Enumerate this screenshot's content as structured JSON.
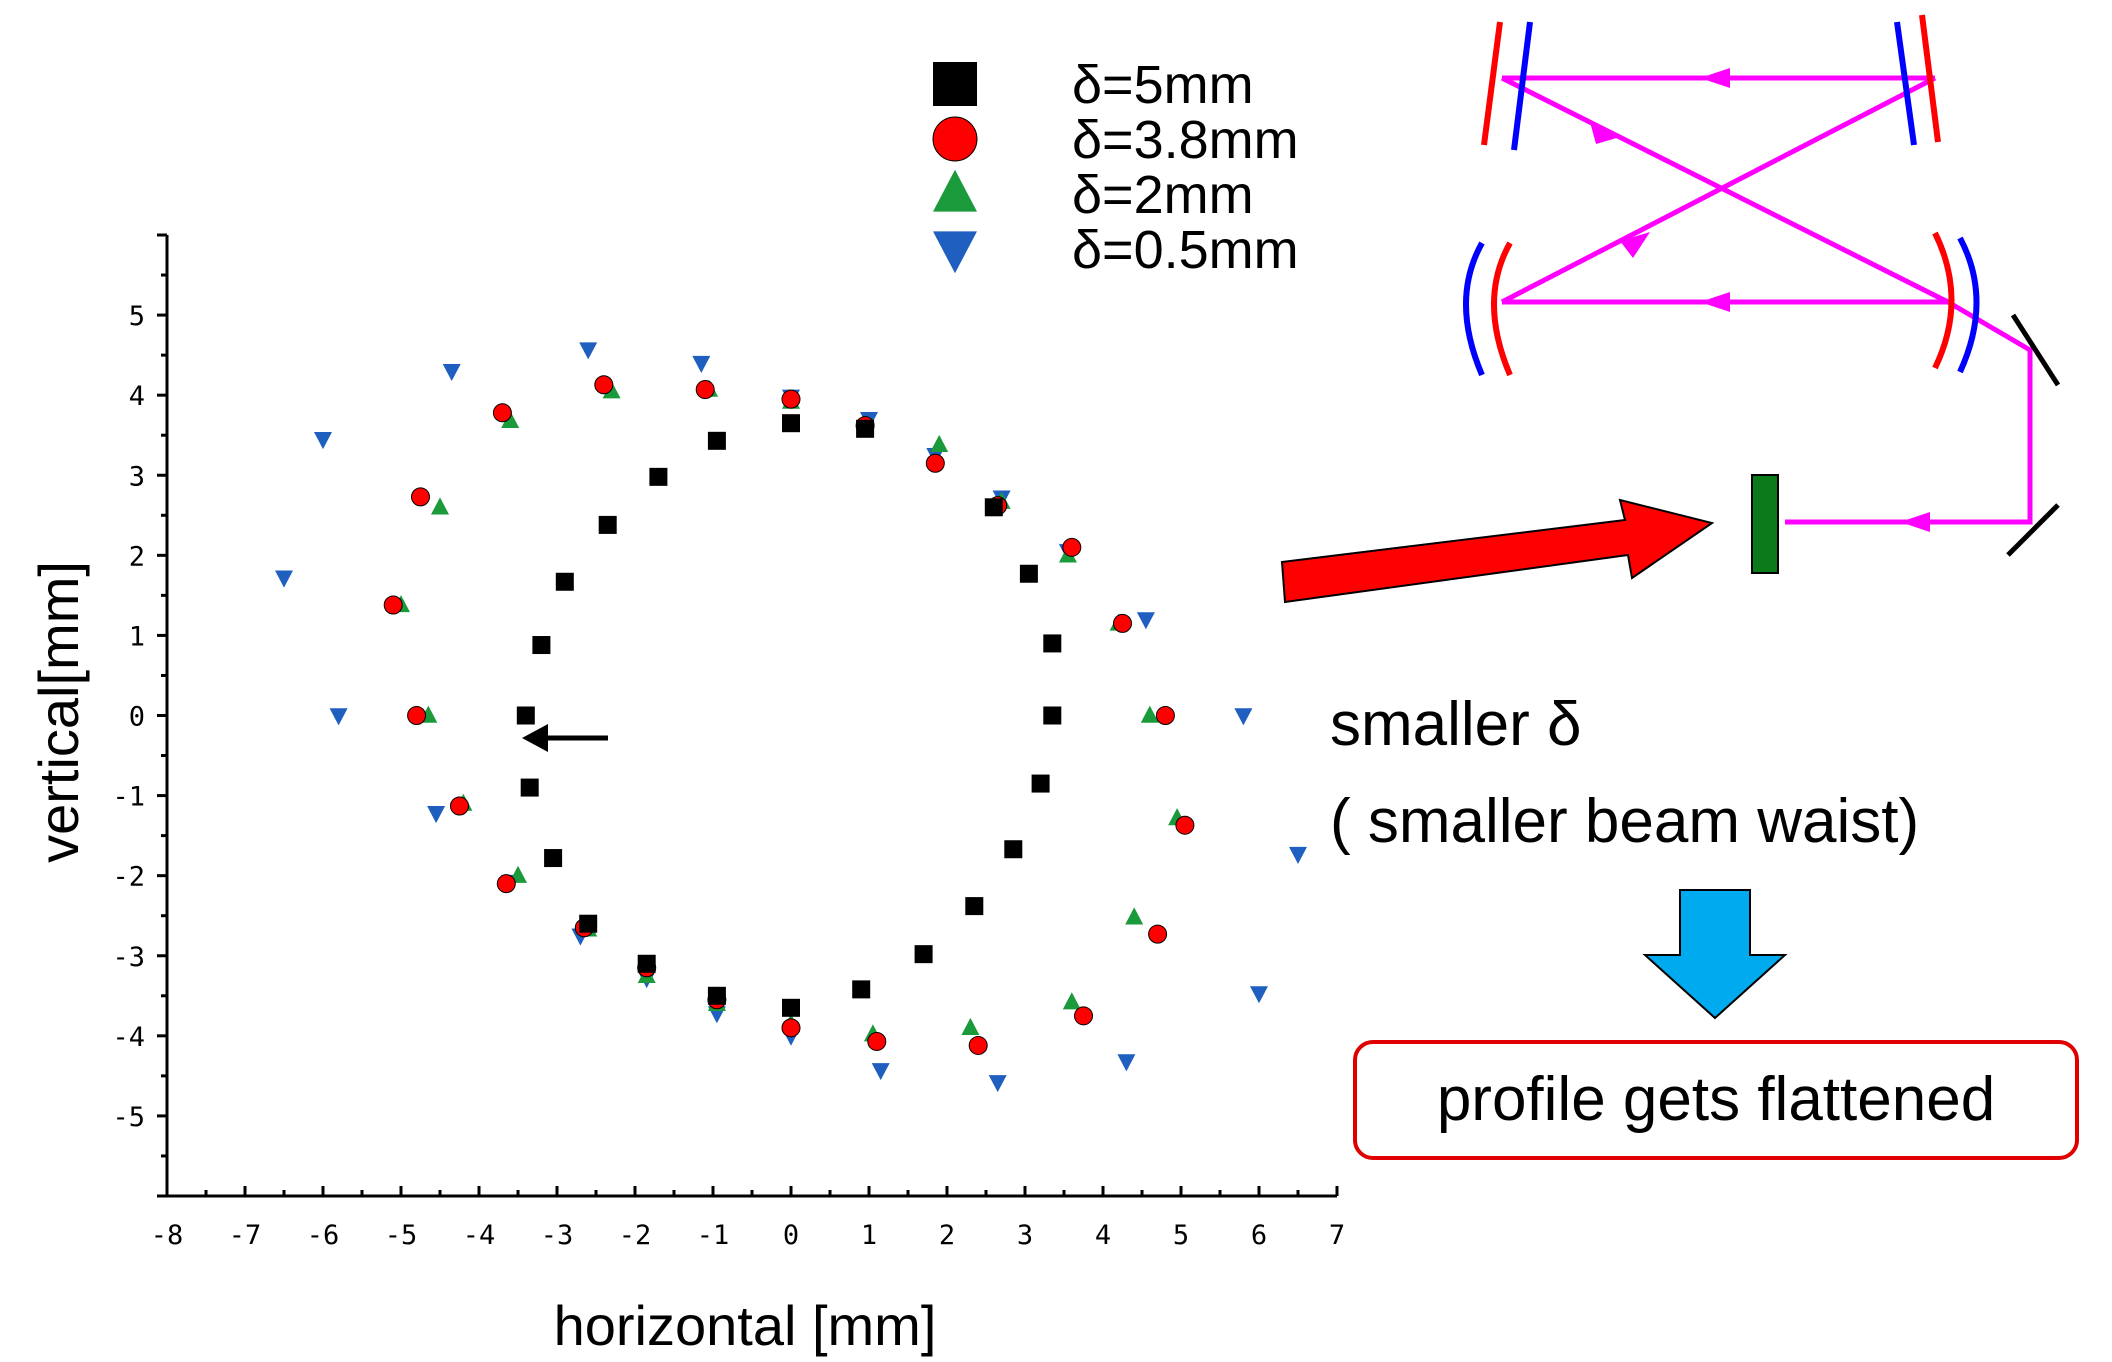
{
  "chart_data": {
    "type": "scatter",
    "xlabel": "horizontal [mm]",
    "ylabel": "vertical[mm]",
    "xlim": [
      -8,
      7
    ],
    "ylim": [
      -6,
      6
    ],
    "x_ticks": [
      -8,
      -7,
      -6,
      -5,
      -4,
      -3,
      -2,
      -1,
      0,
      1,
      2,
      3,
      4,
      5,
      6,
      7
    ],
    "y_ticks": [
      5,
      4,
      3,
      2,
      1,
      0,
      -1,
      -2,
      -3,
      -4,
      -5
    ],
    "legend_position": "top-center",
    "grid": false,
    "series": [
      {
        "name": "δ=5mm",
        "marker": "square",
        "color": "#000000",
        "points": [
          [
            -3.4,
            0
          ],
          [
            -3.2,
            0.88
          ],
          [
            -2.9,
            1.67
          ],
          [
            -2.35,
            2.38
          ],
          [
            -1.7,
            2.98
          ],
          [
            -0.95,
            3.43
          ],
          [
            0,
            3.65
          ],
          [
            0.95,
            3.58
          ],
          [
            2.6,
            2.6
          ],
          [
            3.05,
            1.77
          ],
          [
            3.35,
            0.9
          ],
          [
            3.35,
            0
          ],
          [
            3.2,
            -0.85
          ],
          [
            2.85,
            -1.67
          ],
          [
            2.35,
            -2.38
          ],
          [
            1.7,
            -2.98
          ],
          [
            0.9,
            -3.42
          ],
          [
            0,
            -3.65
          ],
          [
            -0.95,
            -3.5
          ],
          [
            -1.85,
            -3.1
          ],
          [
            -2.6,
            -2.6
          ],
          [
            -3.05,
            -1.78
          ],
          [
            -3.35,
            -0.9
          ]
        ]
      },
      {
        "name": "δ=3.8mm",
        "marker": "circle",
        "color": "#ff0000",
        "points": [
          [
            -4.8,
            0
          ],
          [
            -5.1,
            1.38
          ],
          [
            -4.75,
            2.73
          ],
          [
            -3.7,
            3.78
          ],
          [
            -2.4,
            4.13
          ],
          [
            -1.1,
            4.07
          ],
          [
            0,
            3.95
          ],
          [
            0.95,
            3.62
          ],
          [
            1.85,
            3.15
          ],
          [
            2.65,
            2.62
          ],
          [
            3.6,
            2.1
          ],
          [
            4.25,
            1.15
          ],
          [
            4.8,
            0
          ],
          [
            5.05,
            -1.37
          ],
          [
            4.7,
            -2.73
          ],
          [
            3.75,
            -3.75
          ],
          [
            2.4,
            -4.12
          ],
          [
            1.1,
            -4.07
          ],
          [
            0,
            -3.9
          ],
          [
            -0.95,
            -3.55
          ],
          [
            -1.85,
            -3.15
          ],
          [
            -2.65,
            -2.65
          ],
          [
            -3.65,
            -2.1
          ],
          [
            -4.25,
            -1.13
          ]
        ]
      },
      {
        "name": "δ=2mm",
        "marker": "triangle-up",
        "color": "#1a9a3a",
        "points": [
          [
            -4.65,
            0
          ],
          [
            -5.0,
            1.38
          ],
          [
            -4.5,
            2.6
          ],
          [
            -3.6,
            3.68
          ],
          [
            -2.3,
            4.05
          ],
          [
            -1.05,
            4.07
          ],
          [
            0,
            3.92
          ],
          [
            0.95,
            3.62
          ],
          [
            1.9,
            3.38
          ],
          [
            2.7,
            2.67
          ],
          [
            3.55,
            2.0
          ],
          [
            4.2,
            1.15
          ],
          [
            4.6,
            0
          ],
          [
            4.95,
            -1.28
          ],
          [
            4.4,
            -2.52
          ],
          [
            3.6,
            -3.58
          ],
          [
            2.3,
            -3.9
          ],
          [
            1.05,
            -3.98
          ],
          [
            0,
            -3.85
          ],
          [
            -0.95,
            -3.6
          ],
          [
            -1.85,
            -3.25
          ],
          [
            -2.6,
            -2.67
          ],
          [
            -3.5,
            -2.0
          ],
          [
            -4.2,
            -1.1
          ]
        ]
      },
      {
        "name": "δ=0.5mm",
        "marker": "triangle-down",
        "color": "#1f5fbf",
        "points": [
          [
            -5.8,
            0
          ],
          [
            -6.5,
            1.72
          ],
          [
            -6.0,
            3.45
          ],
          [
            -4.35,
            4.3
          ],
          [
            -2.6,
            4.57
          ],
          [
            -1.15,
            4.4
          ],
          [
            0,
            3.98
          ],
          [
            1.0,
            3.7
          ],
          [
            1.85,
            3.25
          ],
          [
            2.7,
            2.72
          ],
          [
            3.55,
            2.05
          ],
          [
            4.55,
            1.2
          ],
          [
            5.8,
            0
          ],
          [
            6.5,
            -1.73
          ],
          [
            6.0,
            -3.47
          ],
          [
            4.3,
            -4.32
          ],
          [
            2.65,
            -4.58
          ],
          [
            1.15,
            -4.43
          ],
          [
            0,
            -4.0
          ],
          [
            -0.95,
            -3.72
          ],
          [
            -1.85,
            -3.28
          ],
          [
            -2.7,
            -2.75
          ],
          [
            -3.6,
            -2.08
          ],
          [
            -4.55,
            -1.22
          ]
        ]
      }
    ],
    "annotations": [
      "smaller δ",
      "( smaller beam waist)",
      "profile gets flattened"
    ]
  },
  "colors": {
    "arrow_red": "#ff0000",
    "arrow_blue": "#00aaee",
    "beam_path": "#ff00ff",
    "mirror_red": "#ff0000",
    "mirror_blue": "#0000ff",
    "target_green": "#0a7a1a",
    "box_border": "#e00000"
  }
}
